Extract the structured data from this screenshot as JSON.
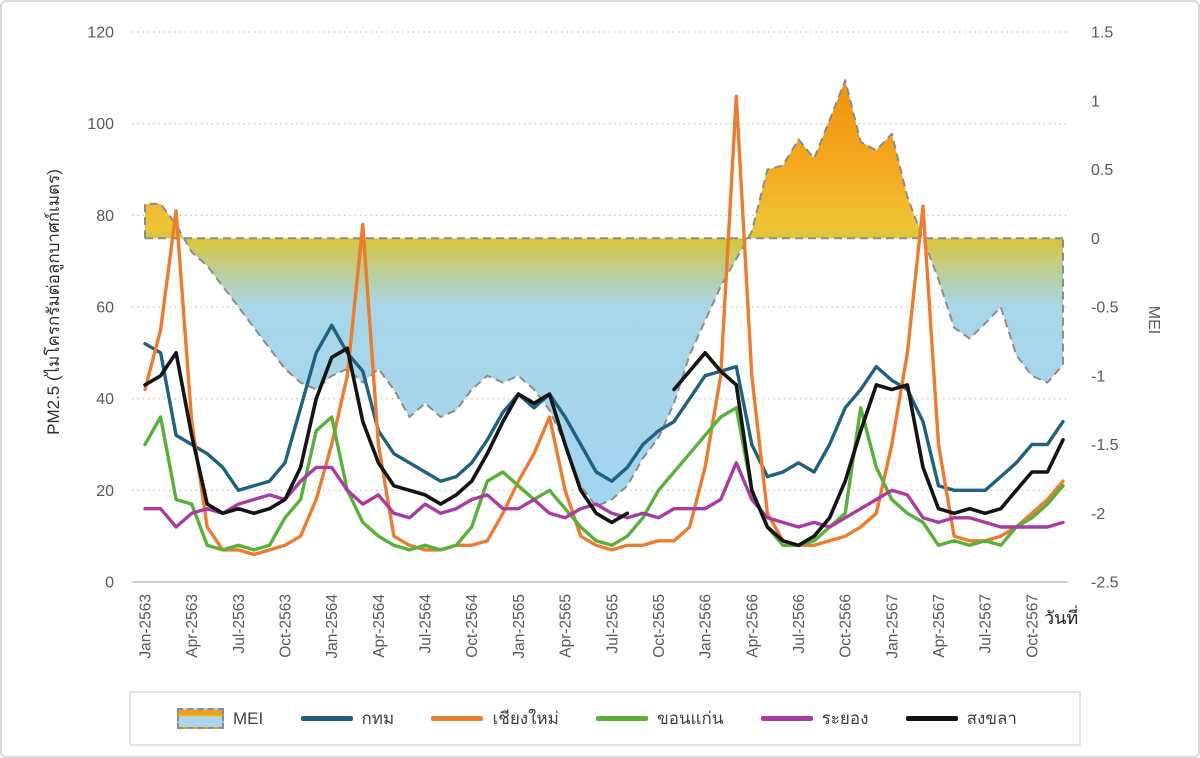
{
  "chart_data": {
    "type": "line",
    "x_axis": {
      "label": "วันที่",
      "tick_labels": [
        "Jan-2563",
        "Apr-2563",
        "Jul-2563",
        "Oct-2563",
        "Jan-2564",
        "Apr-2564",
        "Jul-2564",
        "Oct-2564",
        "Jan-2565",
        "Apr-2565",
        "Jul-2565",
        "Oct-2565",
        "Jan-2566",
        "Apr-2566",
        "Jul-2566",
        "Oct-2566",
        "Jan-2567",
        "Apr-2567",
        "Jul-2567",
        "Oct-2567"
      ],
      "months_per_tick": 3,
      "n_points": 60
    },
    "y_left": {
      "label": "PM2.5 (ไมโครกรัมต่อลูกบาศก์เมตร)",
      "ticks": [
        0,
        20,
        40,
        60,
        80,
        100,
        120
      ],
      "range": [
        0,
        120
      ],
      "grid": "horizontal-dotted"
    },
    "y_right": {
      "label": "MEI",
      "ticks": [
        1.5,
        1,
        0.5,
        0,
        -0.5,
        -1,
        -1.5,
        -2,
        -2.5
      ],
      "range": [
        -2.5,
        1.5
      ]
    },
    "mei_area": {
      "name": "MEI",
      "baseline": 0,
      "outline_color": "#8c8c8c",
      "outline_style": "dashed",
      "gradient_stops": [
        [
          0,
          "#F1910C"
        ],
        [
          0.2,
          "#F5A91F"
        ],
        [
          0.34,
          "#EFC335"
        ],
        [
          0.37,
          "#D9C53E"
        ],
        [
          0.44,
          "#BCCE96"
        ],
        [
          0.52,
          "#A9D6E8"
        ],
        [
          1,
          "#A3D5F0"
        ]
      ],
      "values": [
        0.25,
        0.25,
        0.1,
        -0.1,
        -0.2,
        -0.35,
        -0.5,
        -0.65,
        -0.8,
        -0.95,
        -1.05,
        -1.1,
        -1.0,
        -0.95,
        -1.05,
        -0.95,
        -1.1,
        -1.3,
        -1.2,
        -1.3,
        -1.25,
        -1.1,
        -1.0,
        -1.05,
        -1.0,
        -1.1,
        -1.25,
        -1.5,
        -1.8,
        -1.95,
        -1.9,
        -1.8,
        -1.6,
        -1.45,
        -1.2,
        -0.85,
        -0.6,
        -0.35,
        -0.15,
        0.05,
        0.5,
        0.53,
        0.72,
        0.58,
        0.86,
        1.15,
        0.7,
        0.64,
        0.76,
        0.3,
        0.0,
        -0.3,
        -0.65,
        -0.73,
        -0.62,
        -0.5,
        -0.85,
        -1.0,
        -1.05,
        -0.92
      ]
    },
    "series": [
      {
        "name": "กทม",
        "key": "bangkok",
        "color": "#206080",
        "values": [
          52,
          50,
          32,
          30,
          28,
          25,
          20,
          21,
          22,
          26,
          38,
          50,
          56,
          50,
          46,
          33,
          28,
          26,
          24,
          22,
          23,
          26,
          31,
          37,
          41,
          38,
          41,
          36,
          30,
          24,
          22,
          25,
          30,
          33,
          35,
          40,
          45,
          46,
          47,
          30,
          23,
          24,
          26,
          24,
          30,
          38,
          42,
          47,
          44,
          42,
          35,
          21,
          20,
          20,
          20,
          23,
          26,
          30,
          30,
          35
        ]
      },
      {
        "name": "เชียงใหม่",
        "key": "chiangmai",
        "color": "#EC7C2F",
        "values": [
          42,
          55,
          81,
          35,
          12,
          7,
          7,
          6,
          7,
          8,
          10,
          18,
          30,
          45,
          78,
          30,
          10,
          8,
          7,
          7,
          8,
          8,
          9,
          15,
          22,
          28,
          36,
          20,
          10,
          8,
          7,
          8,
          8,
          9,
          9,
          12,
          25,
          45,
          106,
          45,
          15,
          9,
          8,
          8,
          9,
          10,
          12,
          15,
          30,
          50,
          82,
          30,
          10,
          9,
          9,
          10,
          12,
          15,
          18,
          22
        ]
      },
      {
        "name": "ขอนแก่น",
        "key": "khonkaen",
        "color": "#59B03A",
        "values": [
          30,
          36,
          18,
          17,
          8,
          7,
          8,
          7,
          8,
          14,
          18,
          33,
          36,
          20,
          13,
          10,
          8,
          7,
          8,
          7,
          8,
          12,
          22,
          24,
          21,
          18,
          20,
          16,
          12,
          9,
          8,
          10,
          14,
          20,
          24,
          28,
          32,
          36,
          38,
          20,
          12,
          8,
          8,
          9,
          12,
          15,
          38,
          25,
          18,
          15,
          13,
          8,
          9,
          8,
          9,
          8,
          12,
          14,
          17,
          21
        ]
      },
      {
        "name": "ระยอง",
        "key": "rayong",
        "color": "#AA3BA0",
        "values": [
          16,
          16,
          12,
          15,
          16,
          15,
          17,
          18,
          19,
          18,
          22,
          25,
          25,
          20,
          17,
          19,
          15,
          14,
          17,
          15,
          16,
          18,
          19,
          16,
          16,
          18,
          15,
          14,
          16,
          17,
          15,
          14,
          15,
          14,
          16,
          16,
          16,
          18,
          26,
          18,
          14,
          13,
          12,
          13,
          12,
          14,
          16,
          18,
          20,
          19,
          14,
          13,
          14,
          14,
          13,
          12,
          12,
          12,
          12,
          13
        ]
      },
      {
        "name": "สงขลา",
        "key": "songkhla",
        "color": "#141414",
        "values": [
          43,
          45,
          50,
          32,
          17,
          15,
          16,
          15,
          16,
          18,
          25,
          40,
          49,
          51,
          35,
          26,
          21,
          20,
          19,
          17,
          19,
          22,
          28,
          35,
          41,
          39,
          41,
          30,
          20,
          15,
          13,
          15,
          null,
          null,
          42,
          46,
          50,
          46,
          43,
          20,
          12,
          9,
          8,
          10,
          14,
          22,
          33,
          43,
          42,
          43,
          25,
          16,
          15,
          16,
          15,
          16,
          20,
          24,
          24,
          31
        ]
      }
    ],
    "legend": {
      "position": "bottom",
      "items": [
        "MEI",
        "กทม",
        "เชียงใหม่",
        "ขอนแก่น",
        "ระยอง",
        "สงขลา"
      ]
    }
  }
}
